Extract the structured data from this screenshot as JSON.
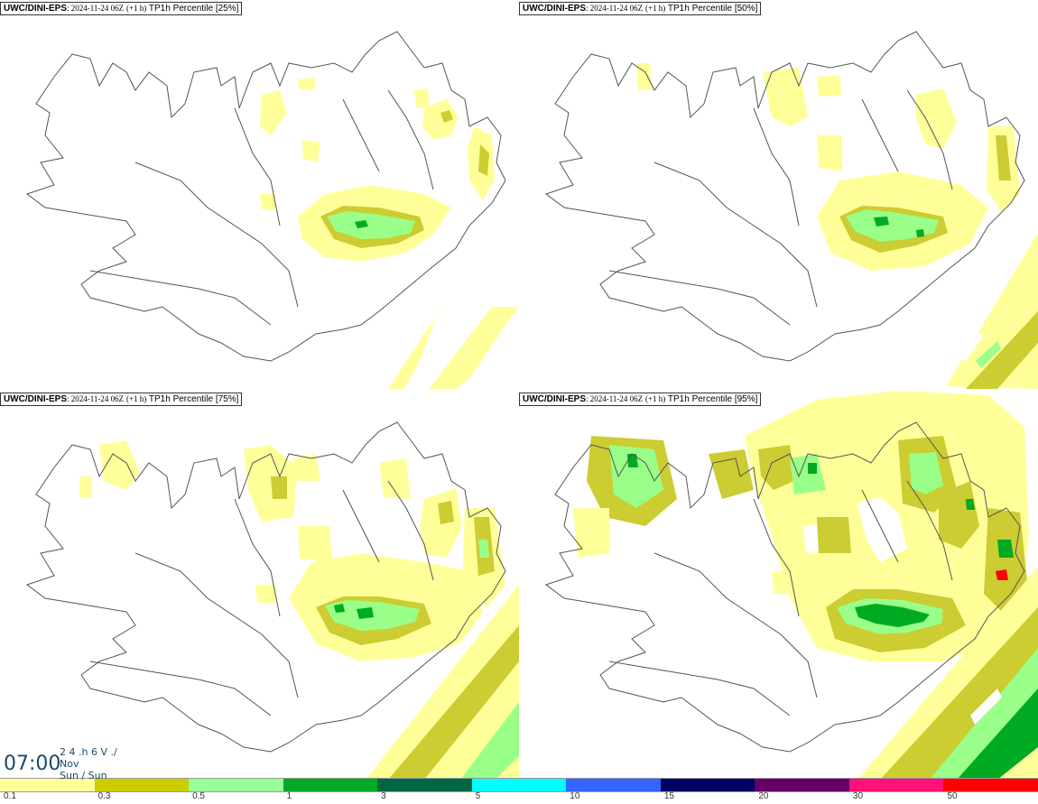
{
  "panels": [
    {
      "model": "UWC/DINI-EPS",
      "run": ": 2024-11-24 06Z",
      "lead": "(+1 h)",
      "param": "TP1h Percentile [25%]"
    },
    {
      "model": "UWC/DINI-EPS",
      "run": ": 2024-11-24 06Z",
      "lead": "(+1 h)",
      "param": "TP1h Percentile [50%]"
    },
    {
      "model": "UWC/DINI-EPS",
      "run": ": 2024-11-24 06Z",
      "lead": "(+1 h)",
      "param": "TP1h Percentile [75%]"
    },
    {
      "model": "UWC/DINI-EPS",
      "run": ": 2024-11-24 06Z",
      "lead": "(+1 h)",
      "param": "TP1h Percentile [95%]"
    }
  ],
  "time": {
    "clock": "07:00",
    "line1": "2 4 .h 6 V ./",
    "line2": "Nov",
    "line3": "Sun / Sun"
  },
  "legend": {
    "colors": [
      "#ffff99",
      "#cccc00",
      "#99ff99",
      "#00aa22",
      "#006644",
      "#00ffff",
      "#3366ff",
      "#000066",
      "#660066",
      "#ff1177",
      "#ff0000"
    ],
    "labels": [
      "0.1",
      "0.3",
      "0.5",
      "1",
      "3",
      "5",
      "10",
      "15",
      "20",
      "30",
      "50"
    ]
  },
  "palette": {
    "light": "#ffff99",
    "olive": "#cccc33",
    "lgreen": "#99ff88",
    "green": "#00aa22",
    "coast": "#555555"
  }
}
